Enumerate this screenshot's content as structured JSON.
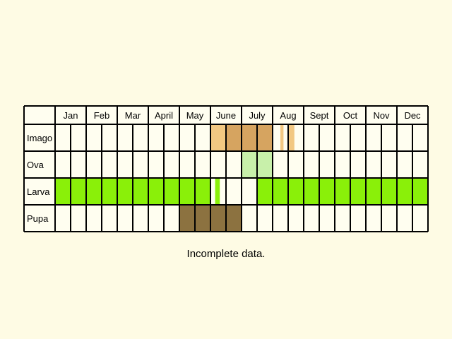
{
  "chart_data": {
    "type": "table",
    "title": "",
    "months": [
      "Jan",
      "Feb",
      "Mar",
      "April",
      "May",
      "June",
      "July",
      "Aug",
      "Sept",
      "Oct",
      "Nov",
      "Dec"
    ],
    "subdivisions_per_month": 2,
    "rows": [
      {
        "label": "Imago",
        "fills": [
          {
            "from": 5.0,
            "to": 5.5,
            "color": "#f2c882"
          },
          {
            "from": 5.5,
            "to": 7.0,
            "color": "#d6a460"
          },
          {
            "from": 7.25,
            "to": 7.35,
            "color": "#f2c882"
          },
          {
            "from": 7.5,
            "to": 7.7,
            "color": "#f2c882"
          }
        ]
      },
      {
        "label": "Ova",
        "fills": [
          {
            "from": 6.0,
            "to": 7.0,
            "color": "#c8f0aa"
          }
        ]
      },
      {
        "label": "Larva",
        "fills": [
          {
            "from": 0.0,
            "to": 5.0,
            "color": "#8af009"
          },
          {
            "from": 5.15,
            "to": 5.3,
            "color": "#8af009"
          },
          {
            "from": 6.5,
            "to": 12.0,
            "color": "#8af009"
          }
        ]
      },
      {
        "label": "Pupa",
        "fills": [
          {
            "from": 4.0,
            "to": 6.0,
            "color": "#8c7240"
          }
        ]
      }
    ],
    "caption": "Incomplete data.",
    "background": "#fefbe4",
    "cell_color": "#fffef0",
    "grid_color": "#000000"
  }
}
